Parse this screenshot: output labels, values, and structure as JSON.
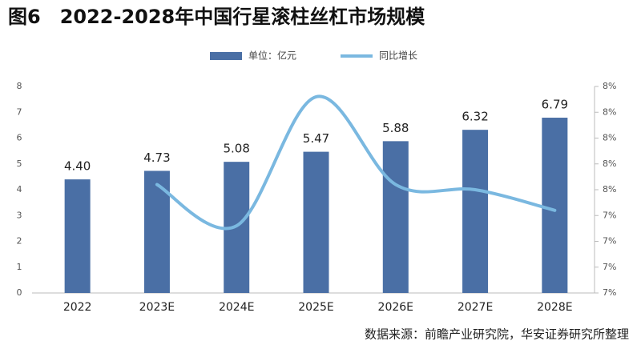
{
  "chart_data": {
    "type": "bar",
    "title": "图6　2022-2028年中国行星滚柱丝杠市场规模",
    "source": "数据来源：前瞻产业研究院，华安证券研究所整理",
    "categories": [
      "2022",
      "2023E",
      "2024E",
      "2025E",
      "2026E",
      "2027E",
      "2028E"
    ],
    "series": [
      {
        "name": "单位：亿元",
        "type": "bar",
        "color": "#4a6fa5",
        "values": [
          4.4,
          4.73,
          5.08,
          5.47,
          5.88,
          6.32,
          6.79
        ],
        "value_labels": [
          "4.40",
          "4.73",
          "5.08",
          "5.47",
          "5.88",
          "6.32",
          "6.79"
        ]
      },
      {
        "name": "同比增长",
        "type": "line",
        "color": "#7ab8e0",
        "axis": "y2",
        "smooth": true,
        "values": [
          null,
          7.51,
          7.43,
          7.68,
          7.51,
          7.5,
          7.46
        ]
      }
    ],
    "ylim": [
      0,
      8
    ],
    "yticks": [
      0,
      1,
      2,
      3,
      4,
      5,
      6,
      7,
      8
    ],
    "y2lim": [
      7.3,
      7.7
    ],
    "y2ticks": [
      {
        "value": 7.3,
        "label": "7%"
      },
      {
        "value": 7.35,
        "label": "7%"
      },
      {
        "value": 7.4,
        "label": "7%"
      },
      {
        "value": 7.45,
        "label": "7%"
      },
      {
        "value": 7.5,
        "label": "8%"
      },
      {
        "value": 7.55,
        "label": "8%"
      },
      {
        "value": 7.6,
        "label": "8%"
      },
      {
        "value": 7.65,
        "label": "8%"
      },
      {
        "value": 7.7,
        "label": "8%"
      }
    ]
  }
}
